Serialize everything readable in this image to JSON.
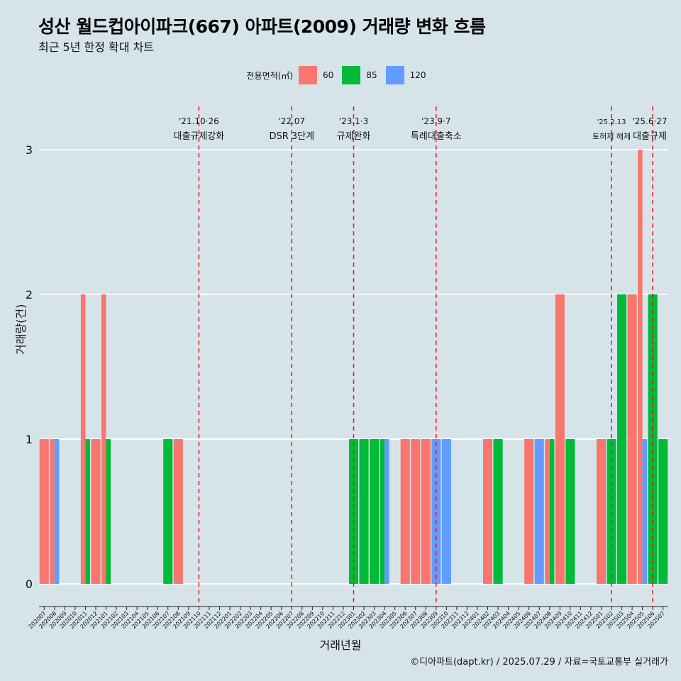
{
  "title": "성산 월드컵아이파크(667) 아파트(2009) 거래량 변화 흐름",
  "subtitle": "최근 5년 한정 확대 차트",
  "legend": {
    "title": "전용면적(㎡)",
    "items": [
      {
        "label": "60",
        "color": "#f8766d"
      },
      {
        "label": "85",
        "color": "#00ba38"
      },
      {
        "label": "120",
        "color": "#619cff"
      }
    ]
  },
  "caption": "©디아파트(dapt.kr) / 2025.07.29 / 자료=국토교통부 실거래가",
  "chart_data": {
    "type": "bar",
    "xlabel": "거래년월",
    "ylabel": "거래량(건)",
    "ylim": [
      0,
      3.3
    ],
    "yticks": [
      0,
      1,
      2,
      3
    ],
    "grid": true,
    "legend_position": "top",
    "categories": [
      "202007",
      "202008",
      "202009",
      "202010",
      "202011",
      "202012",
      "202101",
      "202102",
      "202103",
      "202104",
      "202105",
      "202106",
      "202107",
      "202108",
      "202109",
      "202110",
      "202111",
      "202112",
      "202201",
      "202202",
      "202203",
      "202204",
      "202205",
      "202206",
      "202207",
      "202208",
      "202209",
      "202210",
      "202211",
      "202212",
      "202301",
      "202302",
      "202303",
      "202304",
      "202305",
      "202306",
      "202307",
      "202308",
      "202309",
      "202310",
      "202311",
      "202312",
      "202401",
      "202402",
      "202403",
      "202404",
      "202405",
      "202406",
      "202407",
      "202408",
      "202409",
      "202410",
      "202411",
      "202412",
      "202501",
      "202502",
      "202503",
      "202504",
      "202505",
      "202506",
      "202507"
    ],
    "series": [
      {
        "name": "60",
        "color": "#f8766d",
        "values": [
          1,
          1,
          0,
          0,
          2,
          1,
          2,
          0,
          0,
          0,
          0,
          0,
          0,
          1,
          0,
          0,
          0,
          0,
          0,
          0,
          0,
          0,
          0,
          0,
          0,
          0,
          0,
          0,
          0,
          0,
          0,
          0,
          0,
          0,
          0,
          1,
          1,
          1,
          0,
          0,
          0,
          0,
          0,
          1,
          0,
          0,
          0,
          1,
          0,
          1,
          2,
          0,
          0,
          0,
          1,
          0,
          0,
          2,
          3,
          0,
          0
        ]
      },
      {
        "name": "85",
        "color": "#00ba38",
        "values": [
          0,
          0,
          0,
          0,
          1,
          0,
          1,
          0,
          0,
          0,
          0,
          0,
          1,
          0,
          0,
          0,
          0,
          0,
          0,
          0,
          0,
          0,
          0,
          0,
          0,
          0,
          0,
          0,
          0,
          0,
          1,
          1,
          1,
          1,
          0,
          0,
          0,
          0,
          0,
          0,
          0,
          0,
          0,
          0,
          1,
          0,
          0,
          0,
          0,
          1,
          0,
          1,
          0,
          0,
          0,
          1,
          2,
          0,
          0,
          2,
          1
        ]
      },
      {
        "name": "120",
        "color": "#619cff",
        "values": [
          0,
          1,
          0,
          0,
          0,
          0,
          0,
          0,
          0,
          0,
          0,
          0,
          0,
          0,
          0,
          0,
          0,
          0,
          0,
          0,
          0,
          0,
          0,
          0,
          0,
          0,
          0,
          0,
          0,
          0,
          0,
          0,
          0,
          1,
          0,
          0,
          0,
          0,
          1,
          1,
          0,
          0,
          0,
          0,
          0,
          0,
          0,
          0,
          1,
          0,
          0,
          0,
          0,
          0,
          0,
          0,
          0,
          0,
          1,
          0,
          0
        ]
      }
    ],
    "annotations": [
      {
        "x": "202110",
        "date": "'21.10·26",
        "label": "대출규제강화"
      },
      {
        "x": "202207",
        "date": "'22.07",
        "label": "DSR 3단계"
      },
      {
        "x": "202301",
        "date": "'23.1·3",
        "label": "규제완화"
      },
      {
        "x": "202309",
        "date": "'23.9·7",
        "label": "특례대출축소"
      },
      {
        "x": "202502",
        "date": "'25.2.13",
        "label": "토허제 해제"
      },
      {
        "x": "202506",
        "date": "'25.6·27",
        "label": "대출규제"
      }
    ]
  }
}
